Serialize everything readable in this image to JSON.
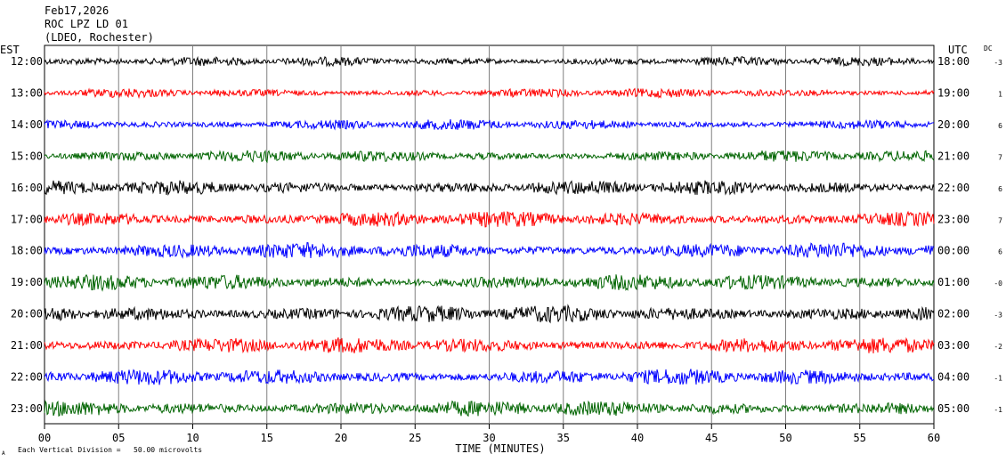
{
  "header": {
    "date": "Feb17,2026",
    "station": "ROC LPZ LD 01",
    "network": "(LDEO, Rochester)"
  },
  "labels": {
    "left_tz": "EST",
    "right_tz": "UTC",
    "dc": "DC",
    "xlabel": "TIME (MINUTES)",
    "scale_note": "Each Vertical Division =   50.00 microvolts",
    "corner_mark": "A"
  },
  "chart_data": {
    "type": "line",
    "title": "ROC LPZ LD 01",
    "xlabel": "TIME (MINUTES)",
    "xlim": [
      0,
      60
    ],
    "x_ticks": [
      "00",
      "05",
      "10",
      "15",
      "20",
      "25",
      "30",
      "35",
      "40",
      "45",
      "50",
      "55",
      "60"
    ],
    "grid": true,
    "colors": [
      "#000000",
      "#ff0000",
      "#0000ff",
      "#006400"
    ],
    "rows": [
      {
        "est": "12:00",
        "utc": "18:00",
        "dc": "-3",
        "color": "#000000",
        "amplitude": 0.35
      },
      {
        "est": "13:00",
        "utc": "19:00",
        "dc": "1",
        "color": "#ff0000",
        "amplitude": 0.35
      },
      {
        "est": "14:00",
        "utc": "20:00",
        "dc": "6",
        "color": "#0000ff",
        "amplitude": 0.4
      },
      {
        "est": "15:00",
        "utc": "21:00",
        "dc": "7",
        "color": "#006400",
        "amplitude": 0.45
      },
      {
        "est": "16:00",
        "utc": "22:00",
        "dc": "6",
        "color": "#000000",
        "amplitude": 0.55
      },
      {
        "est": "17:00",
        "utc": "23:00",
        "dc": "7",
        "color": "#ff0000",
        "amplitude": 0.6
      },
      {
        "est": "18:00",
        "utc": "00:00",
        "dc": "6",
        "color": "#0000ff",
        "amplitude": 0.6
      },
      {
        "est": "19:00",
        "utc": "01:00",
        "dc": "-0",
        "color": "#006400",
        "amplitude": 0.6
      },
      {
        "est": "20:00",
        "utc": "02:00",
        "dc": "-3",
        "color": "#000000",
        "amplitude": 0.65
      },
      {
        "est": "21:00",
        "utc": "03:00",
        "dc": "-2",
        "color": "#ff0000",
        "amplitude": 0.6
      },
      {
        "est": "22:00",
        "utc": "04:00",
        "dc": "-1",
        "color": "#0000ff",
        "amplitude": 0.6
      },
      {
        "est": "23:00",
        "utc": "05:00",
        "dc": "-1",
        "color": "#006400",
        "amplitude": 0.6
      }
    ]
  }
}
